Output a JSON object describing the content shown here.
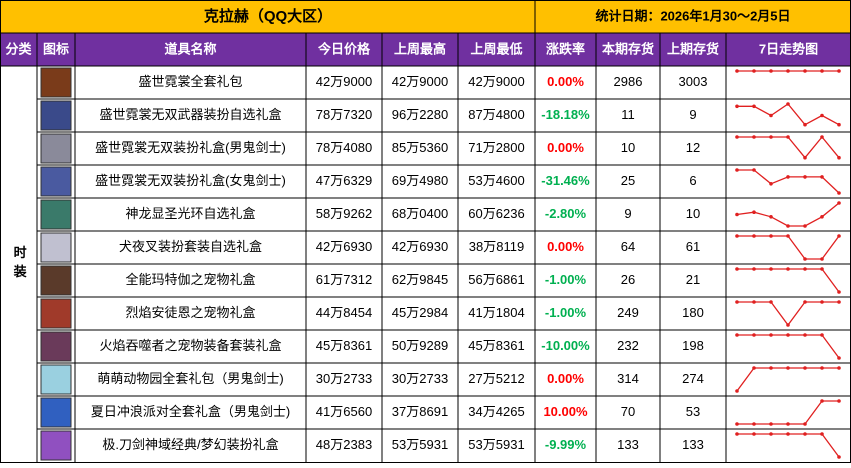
{
  "header": {
    "title": "克拉赫（QQ大区）",
    "date": "统计日期：2026年1月30～2月5日"
  },
  "table": {
    "columns": [
      "分类",
      "图标",
      "道具名称",
      "今日价格",
      "上周最高",
      "上周最低",
      "涨跌率",
      "本期存货",
      "上期存货",
      "7日走势图"
    ],
    "category": "时装",
    "rows": [
      [
        "盛世霓裳全套礼包",
        "42万9000",
        "42万9000",
        "42万9000",
        "0.00%",
        2986,
        3003
      ],
      [
        "盛世霓裳无双武器装扮自选礼盒",
        "78万7320",
        "96万2280",
        "87万4800",
        "-18.18%",
        11,
        9
      ],
      [
        "盛世霓裳无双装扮礼盒(男鬼剑士)",
        "78万4080",
        "85万5360",
        "71万2800",
        "0.00%",
        10,
        12
      ],
      [
        "盛世霓裳无双装扮礼盒(女鬼剑士)",
        "47万6329",
        "69万4980",
        "53万4600",
        "-31.46%",
        25,
        6
      ],
      [
        "神龙显圣光环自选礼盒",
        "58万9262",
        "68万0400",
        "60万6236",
        "-2.80%",
        9,
        10
      ],
      [
        "犬夜叉装扮套装自选礼盒",
        "42万6930",
        "42万6930",
        "38万8119",
        "0.00%",
        64,
        61
      ],
      [
        "全能玛特伽之宠物礼盒",
        "61万7312",
        "62万9845",
        "56万6861",
        "-1.00%",
        26,
        21
      ],
      [
        "烈焰安徒恩之宠物礼盒",
        "44万8454",
        "45万2984",
        "41万1804",
        "-1.00%",
        249,
        180
      ],
      [
        "火焰吞噬者之宠物装备套装礼盒",
        "45万8361",
        "50万9289",
        "45万8361",
        "-10.00%",
        232,
        198
      ],
      [
        "萌萌动物园全套礼包（男鬼剑士)",
        "30万2733",
        "30万2733",
        "27万5212",
        "0.00%",
        314,
        274
      ],
      [
        "夏日冲浪派对全套礼盒（男鬼剑士)",
        "41万6560",
        "37万8691",
        "34万4265",
        "10.00%",
        70,
        53
      ],
      [
        "极.刀剑神域经典/梦幻装扮礼盒",
        "48万2383",
        "53万5931",
        "53万5931",
        "-9.99%",
        133,
        133
      ]
    ],
    "trends": [
      [
        10,
        10,
        10,
        10,
        10,
        10,
        10
      ],
      [
        9,
        9,
        5,
        10,
        1,
        5,
        1
      ],
      [
        10,
        10,
        10,
        10,
        1,
        10,
        1
      ],
      [
        10,
        10,
        4,
        7,
        7,
        7,
        0
      ],
      [
        5,
        6,
        4,
        0,
        0,
        4,
        10
      ],
      [
        10,
        10,
        10,
        10,
        0,
        0,
        10
      ],
      [
        10,
        10,
        10,
        10,
        10,
        10,
        0
      ],
      [
        10,
        10,
        10,
        0,
        10,
        10,
        10
      ],
      [
        10,
        10,
        10,
        10,
        10,
        10,
        0
      ],
      [
        0,
        10,
        10,
        10,
        10,
        10,
        10
      ],
      [
        0,
        0,
        0,
        0,
        0,
        10,
        10
      ],
      [
        10,
        10,
        10,
        10,
        10,
        10,
        0
      ]
    ]
  }
}
